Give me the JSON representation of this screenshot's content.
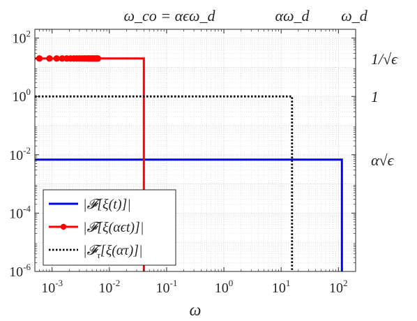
{
  "chart_data": {
    "type": "line",
    "x_scale": "log",
    "y_scale": "log",
    "xlim": [
      0.0005,
      200
    ],
    "ylim": [
      1e-06,
      200
    ],
    "xlabel": "ω",
    "ylabel": "",
    "grid": true,
    "legend_placement": "bottom-left",
    "x_ticks": [
      {
        "value": 0.001,
        "base": "10",
        "exp": "-3"
      },
      {
        "value": 0.01,
        "base": "10",
        "exp": "-2"
      },
      {
        "value": 0.1,
        "base": "10",
        "exp": "-1"
      },
      {
        "value": 1,
        "base": "10",
        "exp": "0"
      },
      {
        "value": 10,
        "base": "10",
        "exp": "1"
      },
      {
        "value": 100,
        "base": "10",
        "exp": "2"
      }
    ],
    "y_ticks": [
      {
        "value": 100,
        "base": "10",
        "exp": "2"
      },
      {
        "value": 1,
        "base": "10",
        "exp": "0"
      },
      {
        "value": 0.01,
        "base": "10",
        "exp": "-2"
      },
      {
        "value": 0.0001,
        "base": "10",
        "exp": "-4"
      },
      {
        "value": 1e-06,
        "base": "10",
        "exp": "-6"
      }
    ],
    "top_annotations": [
      {
        "label": "ω_co = αϵω_d",
        "x": 0.04
      },
      {
        "label": "αω_d",
        "x": 15.5
      },
      {
        "label": "ω_d",
        "x": 115
      }
    ],
    "right_annotations": [
      {
        "label": "1/√ϵ",
        "y": 20
      },
      {
        "label": "1",
        "y": 1
      },
      {
        "label": "α√ϵ",
        "y": 0.0068
      }
    ],
    "series": [
      {
        "name": "|𝓕[ξ(t)]|",
        "color": "#0000ff",
        "dash": "solid",
        "markers": false,
        "points": [
          [
            0.0005,
            0.0068
          ],
          [
            115,
            0.0068
          ],
          [
            115,
            1e-06
          ]
        ]
      },
      {
        "name": "|𝓕[ξ(αϵt)]|",
        "color": "#ff0000",
        "dash": "solid",
        "markers": true,
        "points": [
          [
            0.0005,
            20
          ],
          [
            0.04,
            20
          ],
          [
            0.04,
            1e-06
          ]
        ],
        "marker_x": [
          0.0006,
          0.0009,
          0.0012,
          0.0015,
          0.0018,
          0.0021,
          0.0024,
          0.0027,
          0.003,
          0.0033,
          0.0036,
          0.0039,
          0.0042,
          0.0045,
          0.0048,
          0.0051,
          0.0054,
          0.0057,
          0.006,
          0.0063
        ]
      },
      {
        "name": "|𝓕_τ[ξ(ατ)]|",
        "color": "#000000",
        "dash": "dotted",
        "markers": false,
        "points": [
          [
            0.0005,
            1
          ],
          [
            15.5,
            1
          ],
          [
            15.5,
            1e-06
          ]
        ]
      }
    ],
    "legend_labels": [
      {
        "pre": "|",
        "cal": "𝓕",
        "post": "[ξ(t)]|"
      },
      {
        "pre": "|",
        "cal": "𝓕",
        "post": "[ξ(αϵt)]|"
      },
      {
        "pre": "|",
        "cal": "𝓕",
        "sub": "τ",
        "post": "[ξ(ατ)]|"
      }
    ]
  }
}
